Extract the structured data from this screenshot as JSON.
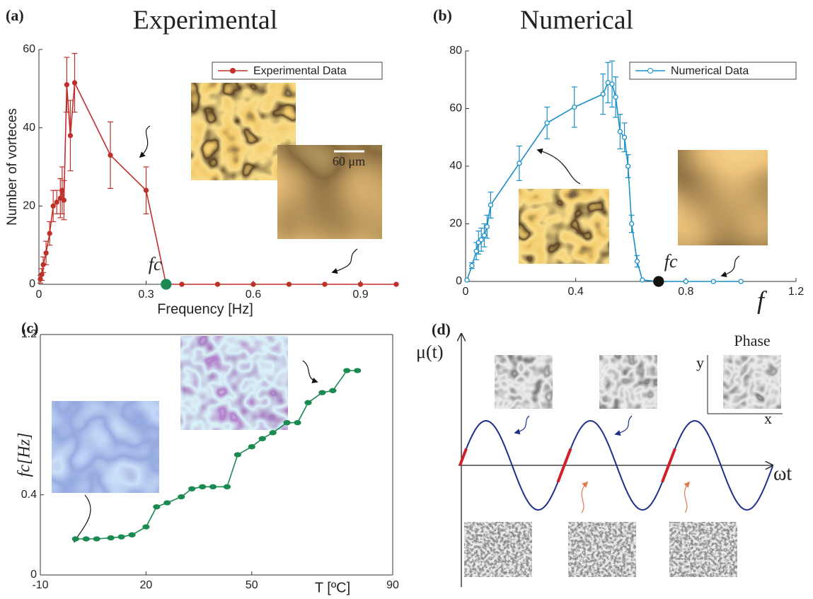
{
  "chart_data": [
    {
      "type": "line",
      "panel_label": "(a)",
      "title": "Experimental",
      "x_label": "Frequency [Hz]",
      "y_label": "Number of vorteces",
      "xlim": [
        0,
        1.0
      ],
      "xticks": [
        0,
        0.3,
        0.6,
        0.9
      ],
      "ylim": [
        0,
        60
      ],
      "yticks": [
        0,
        20,
        40,
        60
      ],
      "x": [
        0.004,
        0.008,
        0.012,
        0.02,
        0.03,
        0.04,
        0.05,
        0.06,
        0.065,
        0.07,
        0.078,
        0.088,
        0.1,
        0.2,
        0.3,
        0.356,
        0.4,
        0.5,
        0.6,
        0.7,
        0.8,
        0.9,
        1.0
      ],
      "series": [
        {
          "name": "Experimental Data",
          "color": "#c0302a",
          "marker": "filled",
          "values": [
            1.3,
            2.5,
            5,
            8,
            13,
            20,
            21,
            22,
            24,
            21.5,
            51,
            38,
            51.5,
            33,
            24,
            0,
            0,
            0,
            0,
            0,
            0,
            0,
            0
          ],
          "errors": [
            1,
            1.5,
            2,
            3,
            3,
            4,
            3,
            5,
            6,
            5,
            7,
            9,
            7.5,
            8.5,
            6,
            null,
            null,
            null,
            null,
            null,
            null,
            null,
            null
          ]
        }
      ],
      "highlight_index": 15,
      "highlight_color": "#1a8a50",
      "critical_label": "fc",
      "scale_bar_label": "60 μm",
      "legend": "upper right"
    },
    {
      "type": "line",
      "panel_label": "(b)",
      "title": "Numerical",
      "x_label": "f",
      "xlim": [
        0,
        1.2
      ],
      "xticks": [
        0,
        0.4,
        0.8,
        1.2
      ],
      "ylim": [
        0,
        80
      ],
      "yticks": [
        0,
        20,
        40,
        60,
        80
      ],
      "x": [
        0.005,
        0.023,
        0.039,
        0.047,
        0.057,
        0.068,
        0.078,
        0.091,
        0.195,
        0.296,
        0.395,
        0.499,
        0.517,
        0.532,
        0.545,
        0.561,
        0.577,
        0.59,
        0.603,
        0.623,
        0.642,
        0.701,
        0.8,
        0.9,
        1.0
      ],
      "series": [
        {
          "name": "Numerical Data",
          "color": "#1a8fc8",
          "marker": "open",
          "values": [
            0.5,
            5.5,
            10.5,
            13.5,
            14.5,
            16,
            19,
            26.5,
            41,
            55,
            60.5,
            65,
            69,
            68.5,
            64,
            52,
            50,
            40,
            20,
            7,
            0.5,
            0,
            0,
            0,
            0
          ],
          "errors": [
            null,
            1,
            3,
            4,
            4,
            4,
            4,
            4.5,
            6,
            5.5,
            7,
            7,
            7,
            8,
            7,
            6,
            5,
            4,
            3,
            2,
            null,
            null,
            null,
            null,
            null
          ]
        }
      ],
      "highlight_index": 21,
      "highlight_color": "#111111",
      "critical_label": "fc",
      "legend": "upper right"
    },
    {
      "type": "line",
      "panel_label": "(c)",
      "x_label": "T [ºC]",
      "y_label": "fc[Hz]",
      "xlim": [
        -10,
        90
      ],
      "xticks": [
        -10,
        20,
        50,
        90
      ],
      "ylim": [
        0,
        1.2
      ],
      "yticks": [
        0,
        0.4,
        1.2
      ],
      "x": [
        0,
        3,
        6,
        10,
        13,
        16,
        20,
        23,
        26,
        30,
        33,
        36,
        39,
        43,
        46,
        50,
        53,
        56,
        60,
        63,
        66,
        70,
        73,
        77,
        80
      ],
      "series": [
        {
          "name": null,
          "color": "#1a8a50",
          "marker": "filled",
          "values": [
            0.18,
            0.18,
            0.18,
            0.185,
            0.19,
            0.2,
            0.24,
            0.34,
            0.36,
            0.39,
            0.43,
            0.44,
            0.44,
            0.44,
            0.6,
            0.64,
            0.68,
            0.71,
            0.76,
            0.76,
            0.86,
            0.91,
            0.92,
            1.02,
            1.02
          ]
        }
      ]
    }
  ],
  "diagram": {
    "panel_label": "(d)",
    "y_label": "μ(t)",
    "x_label": "ωt",
    "inset_title": "Phase",
    "inset_y": "y",
    "inset_x": "x"
  }
}
